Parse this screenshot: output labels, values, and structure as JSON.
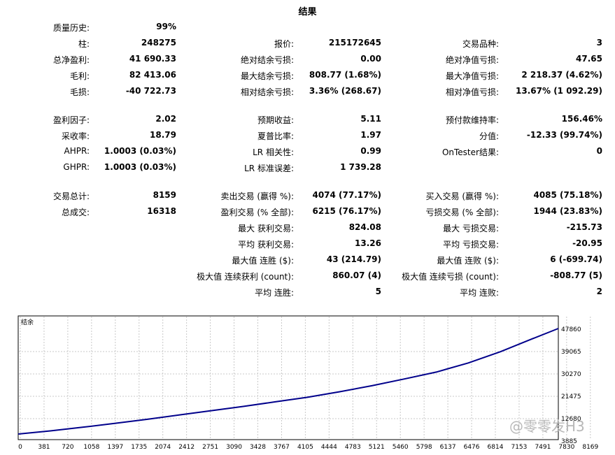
{
  "title": "结果",
  "stats": {
    "quality_label": "质量历史:",
    "quality_value": "99%",
    "bars_label": "柱:",
    "bars_value": "248275",
    "ticks_label": "报价:",
    "ticks_value": "215172645",
    "symbols_label": "交易品种:",
    "symbols_value": "3",
    "net_profit_label": "总净盈利:",
    "net_profit_value": "41 690.33",
    "abs_dd_balance_label": "绝对结余亏损:",
    "abs_dd_balance_value": "0.00",
    "abs_dd_equity_label": "绝对净值亏损:",
    "abs_dd_equity_value": "47.65",
    "gross_profit_label": "毛利:",
    "gross_profit_value": "82 413.06",
    "max_dd_balance_label": "最大结余亏损:",
    "max_dd_balance_value": "808.77 (1.68%)",
    "max_dd_equity_label": "最大净值亏损:",
    "max_dd_equity_value": "2 218.37 (4.62%)",
    "gross_loss_label": "毛损:",
    "gross_loss_value": "-40 722.73",
    "rel_dd_balance_label": "相对结余亏损:",
    "rel_dd_balance_value": "3.36% (268.67)",
    "rel_dd_equity_label": "相对净值亏损:",
    "rel_dd_equity_value": "13.67% (1 092.29)",
    "profit_factor_label": "盈利因子:",
    "profit_factor_value": "2.02",
    "expected_payoff_label": "预期收益:",
    "expected_payoff_value": "5.11",
    "margin_level_label": "预付款维持率:",
    "margin_level_value": "156.46%",
    "recovery_label": "采收率:",
    "recovery_value": "18.79",
    "sharpe_label": "夏普比率:",
    "sharpe_value": "1.97",
    "z_score_label": "分值:",
    "z_score_value": "-12.33 (99.74%)",
    "ahpr_label": "AHPR:",
    "ahpr_value": "1.0003 (0.03%)",
    "lr_corr_label": "LR 相关性:",
    "lr_corr_value": "0.99",
    "ontester_label": "OnTester结果:",
    "ontester_value": "0",
    "ghpr_label": "GHPR:",
    "ghpr_value": "1.0003 (0.03%)",
    "lr_std_label": "LR 标准误差:",
    "lr_std_value": "1 739.28",
    "total_trades_label": "交易总计:",
    "total_trades_value": "8159",
    "short_trades_label": "卖出交易 (赢得 %):",
    "short_trades_value": "4074 (77.17%)",
    "long_trades_label": "买入交易 (赢得 %):",
    "long_trades_value": "4085 (75.18%)",
    "total_deals_label": "总成交:",
    "total_deals_value": "16318",
    "profit_trades_label": "盈利交易 (% 全部):",
    "profit_trades_value": "6215 (76.17%)",
    "loss_trades_label": "亏损交易 (% 全部):",
    "loss_trades_value": "1944 (23.83%)",
    "largest_profit_label": "最大 获利交易:",
    "largest_profit_value": "824.08",
    "largest_loss_label": "最大 亏损交易:",
    "largest_loss_value": "-215.73",
    "avg_profit_label": "平均 获利交易:",
    "avg_profit_value": "13.26",
    "avg_loss_label": "平均 亏损交易:",
    "avg_loss_value": "-20.95",
    "max_consec_wins_label": "最大值 连胜 ($):",
    "max_consec_wins_value": "43 (214.79)",
    "max_consec_losses_label": "最大值 连败 ($):",
    "max_consec_losses_value": "6 (-699.74)",
    "maximal_consec_profit_label": "极大值 连续获利 (count):",
    "maximal_consec_profit_value": "860.07 (4)",
    "maximal_consec_loss_label": "极大值 连续亏损 (count):",
    "maximal_consec_loss_value": "-808.77 (5)",
    "avg_consec_wins_label": "平均 连胜:",
    "avg_consec_wins_value": "5",
    "avg_consec_losses_label": "平均 连败:",
    "avg_consec_losses_value": "2"
  },
  "chart": {
    "legend": "结余",
    "x_ticks": [
      "0",
      "381",
      "720",
      "1058",
      "1397",
      "1735",
      "2074",
      "2412",
      "2751",
      "3090",
      "3428",
      "3767",
      "4105",
      "4444",
      "4783",
      "5121",
      "5460",
      "5798",
      "6137",
      "6476",
      "6814",
      "7153",
      "7491",
      "7830",
      "8169"
    ],
    "y_ticks": [
      "47860",
      "39065",
      "30270",
      "21475",
      "12680",
      "3885"
    ],
    "line_color": "#00008b",
    "grid_color": "#c8c8c8",
    "curve": [
      [
        0,
        3885
      ],
      [
        500,
        5200
      ],
      [
        1000,
        6700
      ],
      [
        1500,
        8300
      ],
      [
        2000,
        10000
      ],
      [
        2500,
        11800
      ],
      [
        3000,
        13600
      ],
      [
        3500,
        15400
      ],
      [
        4000,
        17300
      ],
      [
        4500,
        19200
      ],
      [
        5000,
        21500
      ],
      [
        5500,
        24000
      ],
      [
        6000,
        26800
      ],
      [
        6500,
        29700
      ],
      [
        7000,
        33500
      ],
      [
        7500,
        38200
      ],
      [
        8000,
        43600
      ],
      [
        8400,
        47860
      ]
    ],
    "x_max": 8400,
    "y_min": 3885,
    "y_max": 47860
  },
  "watermark": "@零零发H3"
}
